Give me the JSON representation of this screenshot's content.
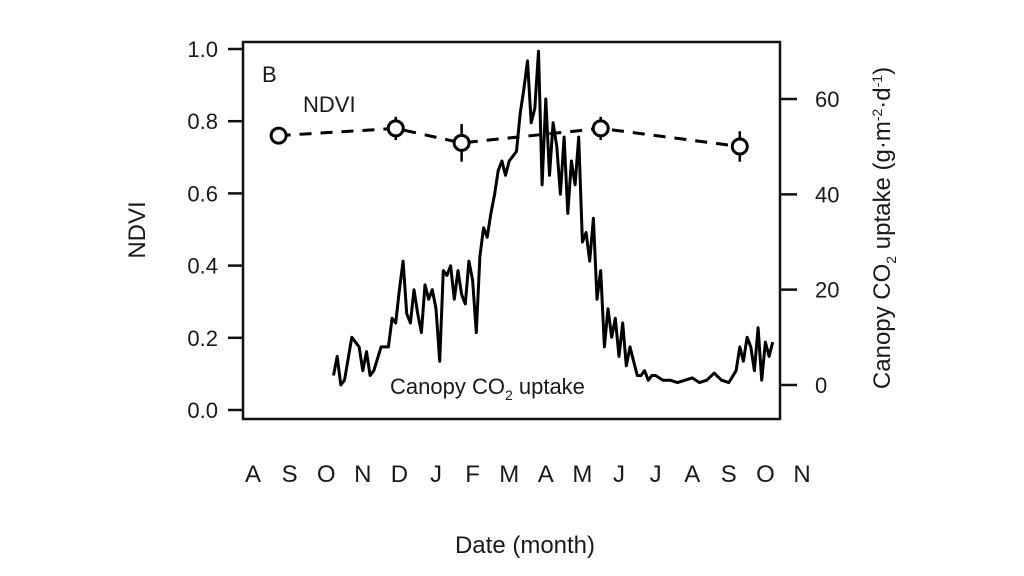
{
  "chart_data": {
    "type": "line",
    "panel_label": "B",
    "xlabel": "Date (month)",
    "x_tick_labels": [
      "A",
      "S",
      "O",
      "N",
      "D",
      "J",
      "F",
      "M",
      "A",
      "M",
      "J",
      "J",
      "A",
      "S",
      "O",
      "N"
    ],
    "left_axis": {
      "label": "NDVI",
      "ylim": [
        0.0,
        1.0
      ],
      "ticks": [
        "0.0",
        "0.2",
        "0.4",
        "0.6",
        "0.8",
        "1.0"
      ]
    },
    "right_axis": {
      "label": "Canopy CO2 uptake (g·m-2·d-1)",
      "label_main": "Canopy CO",
      "label_sub": "2",
      "label_rest": " uptake (g·m",
      "label_sup1": "-2",
      "label_mid": "·d",
      "label_sup2": "-1",
      "label_end": ")",
      "ylim": [
        -5,
        70
      ],
      "ticks": [
        "0",
        "20",
        "40",
        "60"
      ]
    },
    "annotations": {
      "ndvi_label": "NDVI",
      "co2_label_main": "Canopy CO",
      "co2_label_sub": "2",
      "co2_label_rest": " uptake"
    },
    "series": [
      {
        "name": "NDVI",
        "axis": "left",
        "style": "dashed line with open circle markers and error bars",
        "x_month_index": [
          0.7,
          3.9,
          5.7,
          9.5,
          13.3
        ],
        "values": [
          0.76,
          0.78,
          0.74,
          0.78,
          0.73
        ],
        "error": [
          0.0,
          0.01,
          0.03,
          0.01,
          0.02
        ]
      },
      {
        "name": "Canopy CO2 uptake",
        "axis": "right",
        "style": "solid black line",
        "x_month_index": [
          2.2,
          2.3,
          2.4,
          2.5,
          2.7,
          2.9,
          3.0,
          3.1,
          3.2,
          3.3,
          3.5,
          3.7,
          3.8,
          3.9,
          4.0,
          4.1,
          4.2,
          4.3,
          4.4,
          4.5,
          4.6,
          4.7,
          4.8,
          4.9,
          5.0,
          5.1,
          5.2,
          5.3,
          5.4,
          5.5,
          5.6,
          5.7,
          5.8,
          5.9,
          6.0,
          6.1,
          6.2,
          6.3,
          6.4,
          6.5,
          6.6,
          6.7,
          6.8,
          6.9,
          7.0,
          7.1,
          7.2,
          7.3,
          7.4,
          7.5,
          7.6,
          7.7,
          7.8,
          7.9,
          8.0,
          8.1,
          8.2,
          8.3,
          8.4,
          8.5,
          8.6,
          8.7,
          8.8,
          8.9,
          9.0,
          9.1,
          9.2,
          9.3,
          9.4,
          9.5,
          9.6,
          9.7,
          9.8,
          9.9,
          10.0,
          10.1,
          10.2,
          10.3,
          10.4,
          10.5,
          10.6,
          10.7,
          10.8,
          10.9,
          11.0,
          11.2,
          11.4,
          11.6,
          11.8,
          12.0,
          12.2,
          12.4,
          12.6,
          12.8,
          13.0,
          13.2,
          13.3,
          13.4,
          13.5,
          13.6,
          13.7,
          13.8,
          13.9,
          14.0,
          14.1,
          14.2
        ],
        "values": [
          2,
          6,
          0,
          1,
          10,
          8,
          3,
          7,
          2,
          3,
          8,
          8,
          14,
          13,
          20,
          26,
          15,
          13,
          20,
          15,
          11,
          21,
          18,
          20,
          16,
          5,
          24,
          23,
          25,
          18,
          24,
          19,
          17,
          26,
          22,
          11,
          27,
          33,
          31,
          36,
          40,
          45,
          47,
          44,
          47,
          48,
          49,
          57,
          62,
          68,
          55,
          58,
          70,
          42,
          60,
          44,
          55,
          50,
          40,
          52,
          36,
          47,
          42,
          52,
          30,
          32,
          26,
          35,
          18,
          24,
          8,
          16,
          10,
          14,
          6,
          13,
          4,
          8,
          5,
          2,
          2,
          3,
          1,
          2,
          2,
          1,
          1,
          0.5,
          1,
          1.5,
          0.5,
          1,
          2.5,
          1,
          0.5,
          3,
          8,
          5,
          10,
          8,
          3,
          12,
          1,
          9,
          6,
          9
        ]
      }
    ]
  }
}
